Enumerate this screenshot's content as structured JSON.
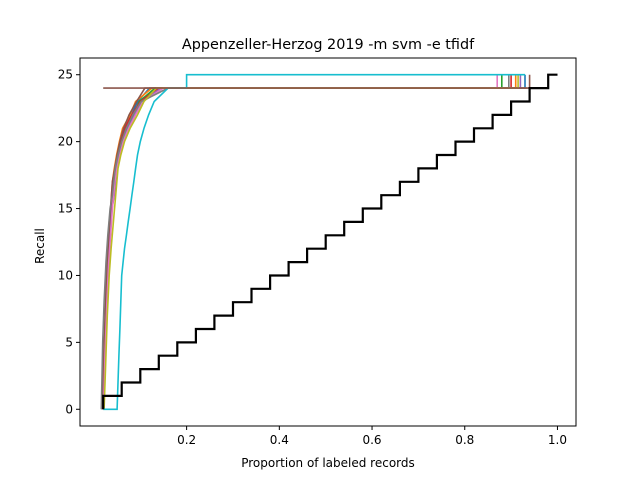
{
  "chart_data": {
    "type": "line",
    "title": "Appenzeller-Herzog 2019 -m svm -e tfidf",
    "xlabel": "Proportion of labeled records",
    "ylabel": "Recall",
    "xlim": [
      -0.03,
      1.04
    ],
    "ylim": [
      -1.25,
      26.25
    ],
    "x_ticks": [
      {
        "value": 0.2,
        "label": "0.2"
      },
      {
        "value": 0.4,
        "label": "0.4"
      },
      {
        "value": 0.6,
        "label": "0.6"
      },
      {
        "value": 0.8,
        "label": "0.8"
      },
      {
        "value": 1.0,
        "label": "1.0"
      }
    ],
    "y_ticks": [
      {
        "value": 0,
        "label": "0"
      },
      {
        "value": 5,
        "label": "5"
      },
      {
        "value": 10,
        "label": "10"
      },
      {
        "value": 15,
        "label": "15"
      },
      {
        "value": 20,
        "label": "20"
      },
      {
        "value": 25,
        "label": "25"
      }
    ],
    "grid": false,
    "legend": "none",
    "series": [
      {
        "color": "#1f77b4",
        "points": [
          [
            0.02,
            0
          ],
          [
            0.022,
            2
          ],
          [
            0.025,
            5
          ],
          [
            0.028,
            9
          ],
          [
            0.031,
            12
          ],
          [
            0.034,
            14
          ],
          [
            0.037,
            15
          ],
          [
            0.04,
            16
          ],
          [
            0.044,
            17
          ],
          [
            0.048,
            18
          ],
          [
            0.052,
            19
          ],
          [
            0.058,
            20
          ],
          [
            0.068,
            21
          ],
          [
            0.08,
            22
          ],
          [
            0.095,
            23
          ],
          [
            0.12,
            24
          ],
          [
            0.93,
            24
          ],
          [
            0.93,
            25
          ]
        ]
      },
      {
        "color": "#ff7f0e",
        "points": [
          [
            0.018,
            0
          ],
          [
            0.021,
            3
          ],
          [
            0.024,
            6
          ],
          [
            0.027,
            10
          ],
          [
            0.03,
            12
          ],
          [
            0.033,
            14
          ],
          [
            0.036,
            15
          ],
          [
            0.04,
            17
          ],
          [
            0.044,
            18
          ],
          [
            0.049,
            19
          ],
          [
            0.055,
            20
          ],
          [
            0.062,
            21
          ],
          [
            0.078,
            22
          ],
          [
            0.09,
            23
          ],
          [
            0.125,
            24
          ],
          [
            0.91,
            24
          ],
          [
            0.91,
            25
          ]
        ]
      },
      {
        "color": "#2ca02c",
        "points": [
          [
            0.021,
            0
          ],
          [
            0.024,
            3
          ],
          [
            0.027,
            7
          ],
          [
            0.03,
            11
          ],
          [
            0.034,
            13
          ],
          [
            0.038,
            15
          ],
          [
            0.043,
            17
          ],
          [
            0.048,
            18
          ],
          [
            0.053,
            19
          ],
          [
            0.06,
            20
          ],
          [
            0.072,
            21
          ],
          [
            0.086,
            22
          ],
          [
            0.098,
            23
          ],
          [
            0.132,
            24
          ],
          [
            0.88,
            24
          ],
          [
            0.88,
            25
          ]
        ]
      },
      {
        "color": "#d62728",
        "points": [
          [
            0.019,
            0
          ],
          [
            0.022,
            4
          ],
          [
            0.026,
            8
          ],
          [
            0.029,
            11
          ],
          [
            0.033,
            13
          ],
          [
            0.037,
            15
          ],
          [
            0.041,
            16
          ],
          [
            0.046,
            18
          ],
          [
            0.051,
            19
          ],
          [
            0.057,
            20
          ],
          [
            0.066,
            21
          ],
          [
            0.082,
            22
          ],
          [
            0.1,
            23
          ],
          [
            0.14,
            24
          ],
          [
            0.9,
            24
          ],
          [
            0.9,
            25
          ]
        ]
      },
      {
        "color": "#9467bd",
        "points": [
          [
            0.02,
            0
          ],
          [
            0.023,
            2
          ],
          [
            0.027,
            6
          ],
          [
            0.031,
            10
          ],
          [
            0.035,
            13
          ],
          [
            0.039,
            15
          ],
          [
            0.044,
            16
          ],
          [
            0.049,
            18
          ],
          [
            0.055,
            19
          ],
          [
            0.062,
            20
          ],
          [
            0.074,
            21
          ],
          [
            0.088,
            22
          ],
          [
            0.104,
            23
          ],
          [
            0.145,
            24
          ],
          [
            0.92,
            24
          ],
          [
            0.92,
            25
          ]
        ]
      },
      {
        "color": "#8c564b",
        "points": [
          [
            0.017,
            0
          ],
          [
            0.02,
            3
          ],
          [
            0.023,
            6
          ],
          [
            0.026,
            9
          ],
          [
            0.029,
            11
          ],
          [
            0.032,
            13
          ],
          [
            0.036,
            15
          ],
          [
            0.04,
            17
          ],
          [
            0.045,
            18
          ],
          [
            0.05,
            19
          ],
          [
            0.056,
            20
          ],
          [
            0.064,
            21
          ],
          [
            0.076,
            22
          ],
          [
            0.092,
            23
          ],
          [
            0.11,
            24
          ],
          [
            0.94,
            24
          ],
          [
            0.94,
            25
          ]
        ]
      },
      {
        "color": "#e377c2",
        "points": [
          [
            0.021,
            0
          ],
          [
            0.024,
            4
          ],
          [
            0.028,
            8
          ],
          [
            0.032,
            11
          ],
          [
            0.036,
            13
          ],
          [
            0.04,
            15
          ],
          [
            0.045,
            17
          ],
          [
            0.05,
            18
          ],
          [
            0.056,
            19
          ],
          [
            0.063,
            20
          ],
          [
            0.075,
            21
          ],
          [
            0.09,
            22
          ],
          [
            0.106,
            23
          ],
          [
            0.15,
            24
          ],
          [
            0.87,
            24
          ],
          [
            0.87,
            25
          ]
        ]
      },
      {
        "color": "#7f7f7f",
        "points": [
          [
            0.016,
            0
          ],
          [
            0.019,
            5
          ],
          [
            0.022,
            8
          ],
          [
            0.026,
            11
          ],
          [
            0.03,
            13
          ],
          [
            0.035,
            15
          ],
          [
            0.04,
            16
          ],
          [
            0.046,
            18
          ],
          [
            0.052,
            19
          ],
          [
            0.06,
            20
          ],
          [
            0.07,
            21
          ],
          [
            0.084,
            22
          ],
          [
            0.102,
            23
          ],
          [
            0.16,
            24
          ],
          [
            0.895,
            24
          ],
          [
            0.895,
            25
          ]
        ]
      },
      {
        "color": "#bcbd22",
        "points": [
          [
            0.022,
            0
          ],
          [
            0.025,
            3
          ],
          [
            0.029,
            7
          ],
          [
            0.033,
            10
          ],
          [
            0.037,
            12
          ],
          [
            0.042,
            14
          ],
          [
            0.047,
            16
          ],
          [
            0.052,
            18
          ],
          [
            0.058,
            19
          ],
          [
            0.066,
            20
          ],
          [
            0.078,
            21
          ],
          [
            0.094,
            22
          ],
          [
            0.108,
            23
          ],
          [
            0.135,
            24
          ],
          [
            0.915,
            24
          ],
          [
            0.915,
            25
          ]
        ]
      },
      {
        "color": "#17becf",
        "points": [
          [
            0.02,
            0
          ],
          [
            0.05,
            0
          ],
          [
            0.052,
            2
          ],
          [
            0.054,
            4
          ],
          [
            0.056,
            6
          ],
          [
            0.058,
            8
          ],
          [
            0.06,
            10
          ],
          [
            0.063,
            11
          ],
          [
            0.066,
            12
          ],
          [
            0.07,
            13
          ],
          [
            0.074,
            14
          ],
          [
            0.078,
            15
          ],
          [
            0.082,
            16
          ],
          [
            0.086,
            17
          ],
          [
            0.09,
            18
          ],
          [
            0.094,
            19
          ],
          [
            0.1,
            20
          ],
          [
            0.108,
            21
          ],
          [
            0.118,
            22
          ],
          [
            0.13,
            23
          ],
          [
            0.16,
            24
          ],
          [
            0.2,
            24
          ],
          [
            0.2,
            25
          ],
          [
            0.93,
            25
          ]
        ]
      },
      {
        "color": "#8c564b",
        "points": [
          [
            0.02,
            24
          ],
          [
            0.935,
            24
          ]
        ]
      },
      {
        "color": "#000000",
        "width": 2.2,
        "points": [
          [
            0.02,
            0
          ],
          [
            0.02,
            1
          ],
          [
            0.06,
            1
          ],
          [
            0.06,
            2
          ],
          [
            0.1,
            2
          ],
          [
            0.1,
            3
          ],
          [
            0.14,
            3
          ],
          [
            0.14,
            4
          ],
          [
            0.18,
            4
          ],
          [
            0.18,
            5
          ],
          [
            0.22,
            5
          ],
          [
            0.22,
            6
          ],
          [
            0.26,
            6
          ],
          [
            0.26,
            7
          ],
          [
            0.3,
            7
          ],
          [
            0.3,
            8
          ],
          [
            0.34,
            8
          ],
          [
            0.34,
            9
          ],
          [
            0.38,
            9
          ],
          [
            0.38,
            10
          ],
          [
            0.42,
            10
          ],
          [
            0.42,
            11
          ],
          [
            0.46,
            11
          ],
          [
            0.46,
            12
          ],
          [
            0.5,
            12
          ],
          [
            0.5,
            13
          ],
          [
            0.54,
            13
          ],
          [
            0.54,
            14
          ],
          [
            0.58,
            14
          ],
          [
            0.58,
            15
          ],
          [
            0.62,
            15
          ],
          [
            0.62,
            16
          ],
          [
            0.66,
            16
          ],
          [
            0.66,
            17
          ],
          [
            0.7,
            17
          ],
          [
            0.7,
            18
          ],
          [
            0.74,
            18
          ],
          [
            0.74,
            19
          ],
          [
            0.78,
            19
          ],
          [
            0.78,
            20
          ],
          [
            0.82,
            20
          ],
          [
            0.82,
            21
          ],
          [
            0.86,
            21
          ],
          [
            0.86,
            22
          ],
          [
            0.9,
            22
          ],
          [
            0.9,
            23
          ],
          [
            0.94,
            23
          ],
          [
            0.94,
            24
          ],
          [
            0.98,
            24
          ],
          [
            0.98,
            25
          ],
          [
            1.0,
            25
          ]
        ]
      }
    ]
  }
}
